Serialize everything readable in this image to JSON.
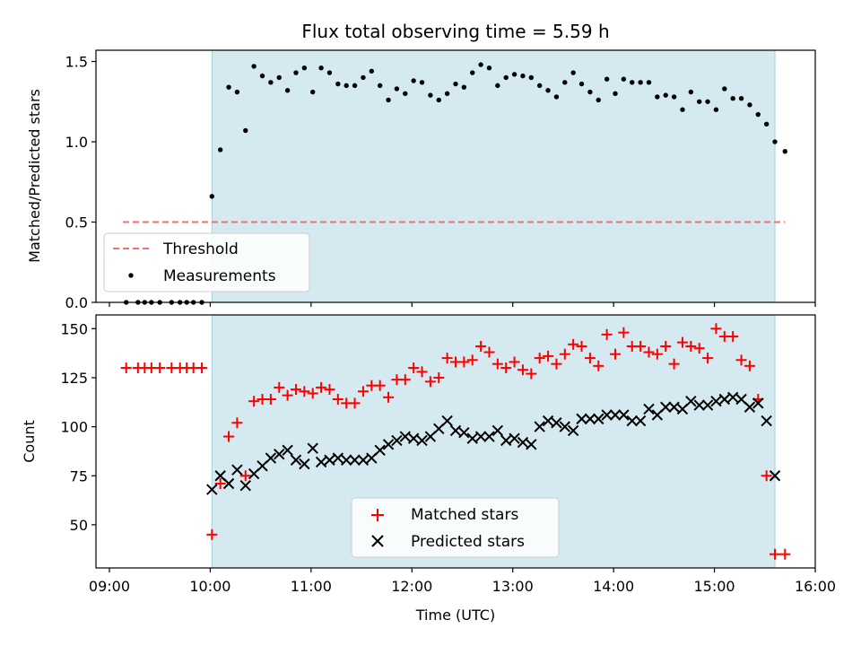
{
  "chart_data": [
    {
      "type": "scatter",
      "title": "Flux total observing time = 5.59 h",
      "xlabel": "",
      "ylabel": "Matched/Predicted stars",
      "ylim": [
        0,
        1.57
      ],
      "yticks": [
        0.0,
        0.5,
        1.0,
        1.5
      ],
      "yticklabels": [
        "0.0",
        "0.5",
        "1.0",
        "1.5"
      ],
      "shaded_region": {
        "x_start": "10:01",
        "x_end": "15:36",
        "color": "#d4eaf0"
      },
      "threshold": {
        "name": "Threshold",
        "value": 0.5,
        "x_start": "09:08",
        "x_end": "15:42",
        "color": "#f07070",
        "style": "dashed"
      },
      "legend": {
        "placement": "lower-left",
        "entries": [
          "Threshold",
          "Measurements"
        ]
      },
      "series": [
        {
          "name": "Measurements",
          "color": "#000000",
          "marker": "dot",
          "x": [
            "09:10",
            "09:17",
            "09:21",
            "09:25",
            "09:30",
            "09:37",
            "09:42",
            "09:46",
            "09:50",
            "09:55",
            "10:01",
            "10:06",
            "10:11",
            "10:16",
            "10:21",
            "10:26",
            "10:31",
            "10:36",
            "10:41",
            "10:46",
            "10:51",
            "10:56",
            "11:01",
            "11:06",
            "11:11",
            "11:16",
            "11:21",
            "11:26",
            "11:31",
            "11:36",
            "11:41",
            "11:46",
            "11:51",
            "11:56",
            "12:01",
            "12:06",
            "12:11",
            "12:16",
            "12:21",
            "12:26",
            "12:31",
            "12:36",
            "12:41",
            "12:46",
            "12:51",
            "12:56",
            "13:01",
            "13:06",
            "13:11",
            "13:16",
            "13:21",
            "13:26",
            "13:31",
            "13:36",
            "13:41",
            "13:46",
            "13:51",
            "13:56",
            "14:01",
            "14:06",
            "14:11",
            "14:16",
            "14:21",
            "14:26",
            "14:31",
            "14:36",
            "14:41",
            "14:46",
            "14:51",
            "14:56",
            "15:01",
            "15:06",
            "15:11",
            "15:16",
            "15:21",
            "15:26",
            "15:31",
            "15:36",
            "15:42"
          ],
          "y": [
            0,
            0,
            0,
            0,
            0,
            0,
            0,
            0,
            0,
            0,
            0.66,
            0.95,
            1.34,
            1.31,
            1.07,
            1.47,
            1.41,
            1.37,
            1.4,
            1.32,
            1.43,
            1.46,
            1.31,
            1.46,
            1.43,
            1.36,
            1.35,
            1.35,
            1.4,
            1.44,
            1.35,
            1.26,
            1.33,
            1.3,
            1.38,
            1.37,
            1.29,
            1.26,
            1.3,
            1.36,
            1.34,
            1.43,
            1.48,
            1.46,
            1.35,
            1.4,
            1.42,
            1.41,
            1.4,
            1.35,
            1.32,
            1.28,
            1.37,
            1.43,
            1.36,
            1.31,
            1.26,
            1.39,
            1.3,
            1.39,
            1.37,
            1.37,
            1.37,
            1.28,
            1.29,
            1.28,
            1.2,
            1.31,
            1.25,
            1.25,
            1.2,
            1.33,
            1.27,
            1.27,
            1.23,
            1.17,
            1.11,
            1.0,
            0.94
          ]
        }
      ]
    },
    {
      "type": "scatter",
      "xlabel": "Time (UTC)",
      "ylabel": "Count",
      "xlim": [
        "08:52",
        "16:00"
      ],
      "ylim": [
        28,
        157
      ],
      "xticks": [
        "09:00",
        "10:00",
        "11:00",
        "12:00",
        "13:00",
        "14:00",
        "15:00",
        "16:00"
      ],
      "yticks": [
        50,
        75,
        100,
        125,
        150
      ],
      "yticklabels": [
        "50",
        "75",
        "100",
        "125",
        "150"
      ],
      "shaded_region": {
        "x_start": "10:01",
        "x_end": "15:36",
        "color": "#d4eaf0"
      },
      "legend": {
        "placement": "lower-center",
        "entries": [
          "Matched stars",
          "Predicted stars"
        ]
      },
      "series": [
        {
          "name": "Matched stars",
          "color": "#ff0000",
          "marker": "plus",
          "x": [
            "09:10",
            "09:17",
            "09:21",
            "09:25",
            "09:30",
            "09:37",
            "09:42",
            "09:46",
            "09:50",
            "09:55",
            "10:01",
            "10:06",
            "10:11",
            "10:16",
            "10:21",
            "10:26",
            "10:31",
            "10:36",
            "10:41",
            "10:46",
            "10:51",
            "10:56",
            "11:01",
            "11:06",
            "11:11",
            "11:16",
            "11:21",
            "11:26",
            "11:31",
            "11:36",
            "11:41",
            "11:46",
            "11:51",
            "11:56",
            "12:01",
            "12:06",
            "12:11",
            "12:16",
            "12:21",
            "12:26",
            "12:31",
            "12:36",
            "12:41",
            "12:46",
            "12:51",
            "12:56",
            "13:01",
            "13:06",
            "13:11",
            "13:16",
            "13:21",
            "13:26",
            "13:31",
            "13:36",
            "13:41",
            "13:46",
            "13:51",
            "13:56",
            "14:01",
            "14:06",
            "14:11",
            "14:16",
            "14:21",
            "14:26",
            "14:31",
            "14:36",
            "14:41",
            "14:46",
            "14:51",
            "14:56",
            "15:01",
            "15:06",
            "15:11",
            "15:16",
            "15:21",
            "15:26",
            "15:31",
            "15:36",
            "15:42"
          ],
          "y": [
            130,
            130,
            130,
            130,
            130,
            130,
            130,
            130,
            130,
            130,
            45,
            71,
            95,
            102,
            75,
            113,
            114,
            114,
            120,
            116,
            119,
            118,
            117,
            120,
            119,
            114,
            112,
            112,
            118,
            121,
            121,
            115,
            124,
            124,
            130,
            128,
            123,
            125,
            135,
            133,
            133,
            134,
            141,
            138,
            132,
            130,
            133,
            129,
            127,
            135,
            136,
            132,
            137,
            142,
            141,
            135,
            131,
            147,
            137,
            148,
            141,
            141,
            138,
            137,
            141,
            132,
            143,
            141,
            140,
            135,
            150,
            146,
            146,
            134,
            131,
            114,
            75,
            35,
            35
          ]
        },
        {
          "name": "Predicted stars",
          "color": "#000000",
          "marker": "x",
          "x": [
            "10:01",
            "10:06",
            "10:11",
            "10:16",
            "10:21",
            "10:26",
            "10:31",
            "10:36",
            "10:41",
            "10:46",
            "10:51",
            "10:56",
            "11:01",
            "11:06",
            "11:11",
            "11:16",
            "11:21",
            "11:26",
            "11:31",
            "11:36",
            "11:41",
            "11:46",
            "11:51",
            "11:56",
            "12:01",
            "12:06",
            "12:11",
            "12:16",
            "12:21",
            "12:26",
            "12:31",
            "12:36",
            "12:41",
            "12:46",
            "12:51",
            "12:56",
            "13:01",
            "13:06",
            "13:11",
            "13:16",
            "13:21",
            "13:26",
            "13:31",
            "13:36",
            "13:41",
            "13:46",
            "13:51",
            "13:56",
            "14:01",
            "14:06",
            "14:11",
            "14:16",
            "14:21",
            "14:26",
            "14:31",
            "14:36",
            "14:41",
            "14:46",
            "14:51",
            "14:56",
            "15:01",
            "15:06",
            "15:11",
            "15:16",
            "15:21",
            "15:26",
            "15:31",
            "15:36"
          ],
          "y": [
            68,
            75,
            71,
            78,
            70,
            76,
            80,
            84,
            86,
            88,
            83,
            81,
            89,
            82,
            83,
            84,
            83,
            83,
            83,
            84,
            88,
            91,
            93,
            95,
            94,
            93,
            95,
            99,
            103,
            98,
            97,
            94,
            95,
            95,
            98,
            93,
            94,
            92,
            91,
            100,
            103,
            102,
            100,
            98,
            104,
            104,
            104,
            106,
            106,
            106,
            103,
            103,
            109,
            106,
            110,
            110,
            109,
            113,
            111,
            111,
            113,
            114,
            115,
            114,
            110,
            112,
            103,
            75
          ]
        }
      ]
    }
  ]
}
